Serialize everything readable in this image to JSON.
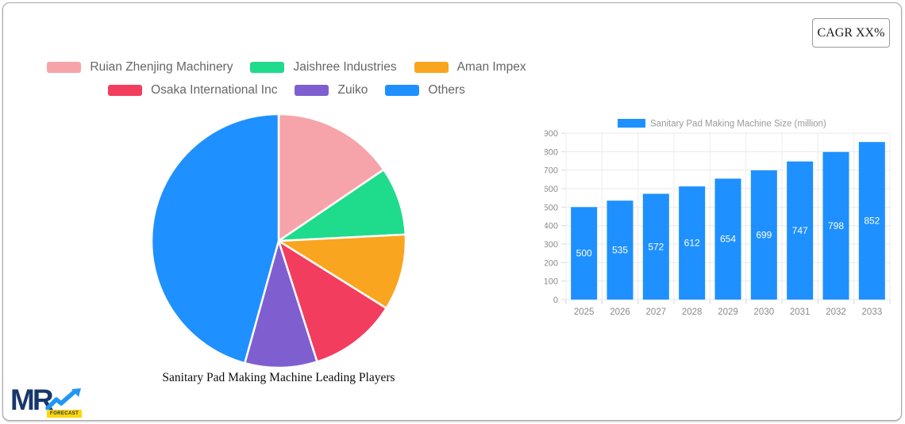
{
  "card": {
    "cagr_label": "CAGR XX%"
  },
  "logo": {
    "text": "MR",
    "badge": "FORECAST"
  },
  "chart_data": [
    {
      "type": "pie",
      "title": "Sanitary Pad Making Machine Leading Players",
      "labels": [
        "Ruian Zhenjing Machinery",
        "Jaishree Industries",
        "Aman Impex",
        "Osaka International Inc",
        "Zuiko",
        "Others"
      ],
      "values_percent": [
        15.5,
        8.7,
        9.7,
        11.2,
        9.2,
        45.7
      ],
      "colors": [
        "#F6A4A9",
        "#1FDB8C",
        "#F9A51F",
        "#F33D5E",
        "#7F5FD0",
        "#1E90FF"
      ],
      "start_angle_deg": 0,
      "direction": "clockwise",
      "legend_position": "top",
      "legend_text_color": "#666666"
    },
    {
      "type": "bar",
      "legend_label": "Sanitary Pad Making Machine Size (million)",
      "categories": [
        "2025",
        "2026",
        "2027",
        "2028",
        "2029",
        "2030",
        "2031",
        "2032",
        "2033"
      ],
      "values": [
        500,
        535,
        572,
        612,
        654,
        699,
        747,
        798,
        852
      ],
      "ylim": [
        0,
        900
      ],
      "ytick_step": 100,
      "color": "#1E90FF",
      "grid": true,
      "value_label_color": "#ffffff",
      "tick_color": "#8a8a8a"
    }
  ]
}
